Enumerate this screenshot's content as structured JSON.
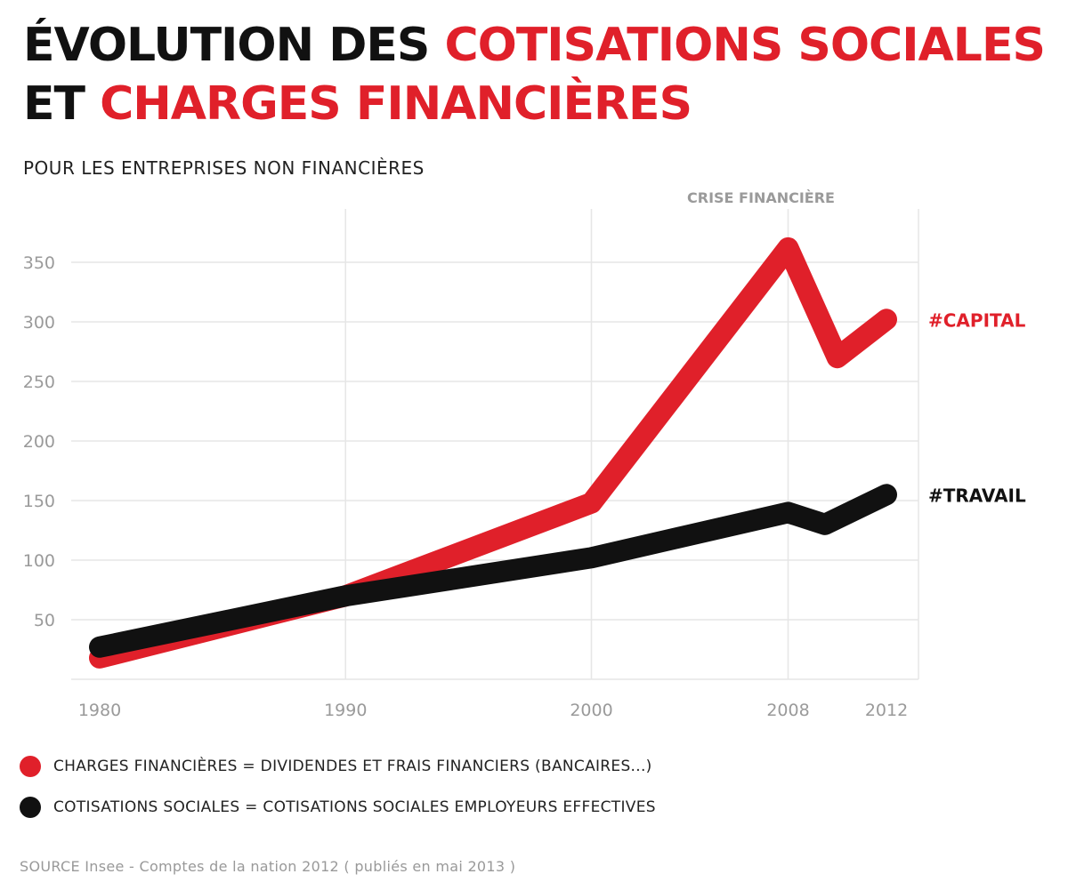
{
  "header": {
    "title_line1_black": "ÉVOLUTION DES ",
    "title_line1_red": "COTISATIONS SOCIALES",
    "title_line2_black": "ET ",
    "title_line2_red": "CHARGES FINANCIÈRES",
    "subtitle": "POUR LES ENTREPRISES NON FINANCIÈRES"
  },
  "chart_data": {
    "type": "line",
    "annotation": "CRISE FINANCIÈRE",
    "y_ticks": [
      50,
      100,
      150,
      200,
      250,
      300,
      350
    ],
    "x_ticks": [
      1980,
      1990,
      2000,
      2008,
      2012
    ],
    "xlim": [
      1980,
      2012
    ],
    "ylim": [
      0,
      350
    ],
    "grid": true,
    "series": [
      {
        "name": "#CAPITAL",
        "color": "#e0202a",
        "points": [
          [
            1980,
            18
          ],
          [
            1990,
            70
          ],
          [
            2000,
            148
          ],
          [
            2008,
            362
          ],
          [
            2010,
            270
          ],
          [
            2012,
            302
          ]
        ]
      },
      {
        "name": "#TRAVAIL",
        "color": "#111111",
        "points": [
          [
            1980,
            27
          ],
          [
            1990,
            70
          ],
          [
            2000,
            102
          ],
          [
            2008,
            140
          ],
          [
            2009.5,
            130
          ],
          [
            2012,
            155
          ]
        ]
      }
    ]
  },
  "legend": [
    {
      "label": "CHARGES FINANCIÈRES = DIVIDENDES ET FRAIS FINANCIERS (BANCAIRES...)",
      "color": "#e0202a"
    },
    {
      "label": "COTISATIONS SOCIALES  = COTISATIONS SOCIALES EMPLOYEURS EFFECTIVES",
      "color": "#111111"
    }
  ],
  "source": "SOURCE  Insee - Comptes de la nation 2012 ( publiés en mai 2013 )"
}
